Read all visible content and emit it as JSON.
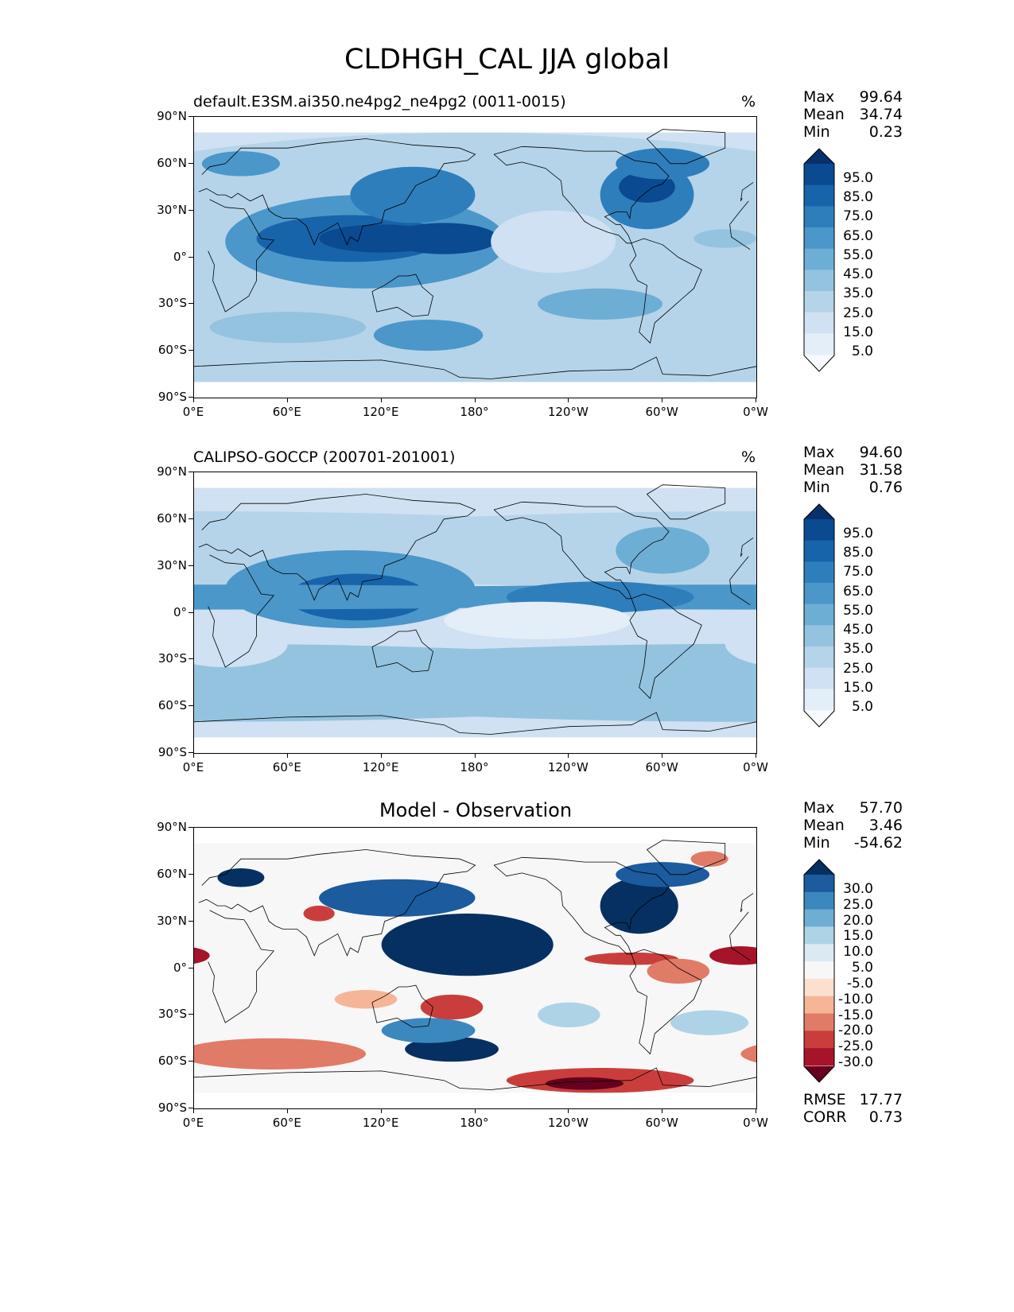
{
  "title": "CLDHGH_CAL JJA global",
  "lat_ticks": [
    "90°N",
    "60°N",
    "30°N",
    "0°",
    "30°S",
    "60°S",
    "90°S"
  ],
  "lon_ticks": [
    "0°E",
    "60°E",
    "120°E",
    "180°",
    "120°W",
    "60°W",
    "0°W"
  ],
  "panels": [
    {
      "id": "model",
      "title": "default.E3SM.ai350.ne4pg2_ne4pg2 (0011-0015)",
      "unit": "%",
      "stats": {
        "max_label": "Max",
        "max": "99.64",
        "mean_label": "Mean",
        "mean": "34.74",
        "min_label": "Min",
        "min": "0.23"
      },
      "colorbar_levels": [
        "95.0",
        "85.0",
        "75.0",
        "65.0",
        "55.0",
        "45.0",
        "35.0",
        "25.0",
        "15.0",
        "5.0"
      ],
      "colormap": "blues"
    },
    {
      "id": "obs",
      "title": "CALIPSO-GOCCP (200701-201001)",
      "unit": "%",
      "stats": {
        "max_label": "Max",
        "max": "94.60",
        "mean_label": "Mean",
        "mean": "31.58",
        "min_label": "Min",
        "min": "0.76"
      },
      "colorbar_levels": [
        "95.0",
        "85.0",
        "75.0",
        "65.0",
        "55.0",
        "45.0",
        "35.0",
        "25.0",
        "15.0",
        "5.0"
      ],
      "colormap": "blues"
    },
    {
      "id": "diff",
      "title": "Model - Observation",
      "unit": "",
      "stats": {
        "max_label": "Max",
        "max": "57.70",
        "mean_label": "Mean",
        "mean": "3.46",
        "min_label": "Min",
        "min": "-54.62"
      },
      "colorbar_levels": [
        "30.0",
        "25.0",
        "20.0",
        "15.0",
        "10.0",
        "5.0",
        "-5.0",
        "-10.0",
        "-15.0",
        "-20.0",
        "-25.0",
        "-30.0"
      ],
      "colormap": "rdbu",
      "extra": {
        "rmse_label": "RMSE",
        "rmse": "17.77",
        "corr_label": "CORR",
        "corr": "0.73"
      }
    }
  ],
  "colors": {
    "blues": [
      "#f7fbff",
      "#e3eef9",
      "#cfe1f2",
      "#b5d4e9",
      "#93c3df",
      "#6daed5",
      "#4b97c9",
      "#2f7ebc",
      "#1864aa",
      "#0a4a90",
      "#08306b"
    ],
    "rdbu": [
      "#67001f",
      "#a51429",
      "#c93e3c",
      "#e07b67",
      "#f6b596",
      "#fbe0d0",
      "#f7f7f7",
      "#dbeaf2",
      "#aed3e6",
      "#6eaed2",
      "#3b88be",
      "#1b5b9e",
      "#053061"
    ]
  }
}
